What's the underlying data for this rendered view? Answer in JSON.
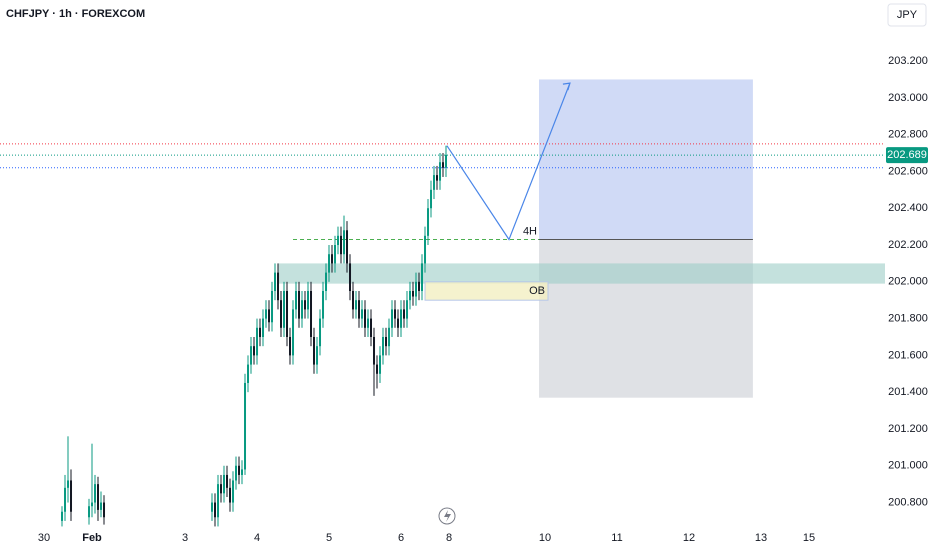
{
  "chart_data": {
    "type": "candlestick",
    "title": "CHFJPY · 1h · FOREXCOM",
    "currency": "JPY",
    "color_up": "#089981",
    "color_down": "#131722",
    "x": [
      6,
      7,
      8,
      9,
      15,
      16,
      17,
      18,
      19,
      20,
      56,
      57,
      58,
      59,
      60,
      61,
      62,
      63,
      64,
      65,
      66,
      67,
      68,
      69,
      70,
      71,
      72,
      73,
      74,
      75,
      76,
      77,
      78,
      79,
      80,
      81,
      82,
      83,
      84,
      85,
      86,
      87,
      88,
      89,
      90,
      91,
      92,
      93,
      94,
      95,
      96,
      97,
      98,
      99,
      100,
      101,
      102,
      103,
      104,
      105,
      106,
      107,
      108,
      109,
      110,
      111,
      112,
      113,
      114,
      115,
      116,
      117,
      118,
      119,
      120,
      121,
      122,
      123,
      124,
      125,
      126,
      127,
      128,
      129,
      130,
      131,
      132,
      133,
      134
    ],
    "open": [
      200.7,
      200.75,
      200.88,
      200.92,
      200.72,
      200.78,
      200.8,
      200.9,
      200.76,
      200.8,
      200.75,
      200.8,
      200.72,
      200.9,
      200.85,
      200.95,
      200.88,
      200.8,
      200.92,
      201.0,
      200.95,
      200.98,
      201.45,
      201.55,
      201.65,
      201.6,
      201.75,
      201.7,
      201.8,
      201.85,
      201.78,
      201.95,
      202.05,
      201.9,
      201.75,
      201.95,
      201.7,
      201.6,
      201.85,
      201.95,
      201.8,
      201.9,
      201.85,
      201.95,
      201.7,
      201.55,
      201.65,
      201.8,
      201.95,
      202.05,
      202.15,
      202.1,
      202.2,
      202.25,
      202.15,
      202.28,
      202.1,
      201.95,
      201.85,
      201.9,
      201.8,
      201.85,
      201.75,
      201.8,
      201.7,
      201.55,
      201.5,
      201.6,
      201.7,
      201.65,
      201.75,
      201.85,
      201.8,
      201.75,
      201.85,
      201.8,
      201.9,
      201.95,
      201.92,
      202.0,
      201.95,
      202.1,
      202.25,
      202.4,
      202.5,
      202.58,
      202.55,
      202.65,
      202.62
    ],
    "high": [
      200.78,
      200.95,
      201.16,
      200.98,
      200.82,
      201.12,
      200.95,
      200.94,
      200.86,
      200.84,
      200.85,
      200.85,
      200.95,
      200.95,
      201.0,
      201.0,
      200.93,
      200.97,
      201.05,
      201.05,
      201.03,
      201.5,
      201.6,
      201.7,
      201.7,
      201.8,
      201.8,
      201.85,
      201.9,
      201.9,
      202.0,
      202.1,
      202.1,
      201.95,
      202.0,
      202.0,
      201.75,
      201.9,
      202.0,
      202.0,
      201.95,
      201.95,
      202.0,
      202.0,
      201.75,
      201.7,
      201.85,
      202.0,
      202.1,
      202.2,
      202.2,
      202.25,
      202.3,
      202.3,
      202.36,
      202.33,
      202.15,
      202.0,
      201.95,
      201.95,
      201.9,
      201.9,
      201.85,
      201.85,
      201.75,
      201.6,
      201.65,
      201.75,
      201.75,
      201.8,
      201.9,
      201.9,
      201.85,
      201.9,
      201.9,
      201.95,
      202.0,
      202.0,
      202.05,
      202.05,
      202.15,
      202.3,
      202.45,
      202.55,
      202.63,
      202.63,
      202.7,
      202.7,
      202.74
    ],
    "low": [
      200.67,
      200.7,
      200.8,
      200.7,
      200.68,
      200.72,
      200.74,
      200.7,
      200.72,
      200.68,
      200.7,
      200.67,
      200.67,
      200.8,
      200.8,
      200.83,
      200.75,
      200.75,
      200.87,
      200.9,
      200.9,
      200.95,
      201.4,
      201.5,
      201.55,
      201.55,
      201.65,
      201.65,
      201.75,
      201.73,
      201.73,
      201.9,
      201.85,
      201.7,
      201.7,
      201.65,
      201.55,
      201.55,
      201.8,
      201.75,
      201.75,
      201.8,
      201.8,
      201.65,
      201.5,
      201.5,
      201.6,
      201.75,
      201.9,
      202.0,
      202.05,
      202.05,
      202.15,
      202.1,
      202.1,
      202.05,
      201.9,
      201.8,
      201.8,
      201.75,
      201.75,
      201.7,
      201.7,
      201.65,
      201.38,
      201.42,
      201.45,
      201.55,
      201.6,
      201.6,
      201.7,
      201.75,
      201.7,
      201.7,
      201.75,
      201.75,
      201.85,
      201.87,
      201.87,
      201.9,
      201.9,
      202.05,
      202.2,
      202.35,
      202.45,
      202.5,
      202.5,
      202.57,
      202.57
    ],
    "close": [
      200.75,
      200.88,
      200.92,
      200.75,
      200.78,
      200.8,
      200.9,
      200.76,
      200.8,
      200.72,
      200.8,
      200.72,
      200.9,
      200.85,
      200.95,
      200.88,
      200.8,
      200.92,
      201.0,
      200.95,
      200.98,
      201.45,
      201.55,
      201.65,
      201.6,
      201.75,
      201.7,
      201.8,
      201.85,
      201.78,
      201.95,
      202.05,
      201.9,
      201.75,
      201.95,
      201.7,
      201.6,
      201.85,
      201.95,
      201.8,
      201.9,
      201.85,
      201.95,
      201.7,
      201.55,
      201.65,
      201.8,
      201.95,
      202.05,
      202.15,
      202.1,
      202.2,
      202.25,
      202.15,
      202.28,
      202.1,
      201.95,
      201.85,
      201.9,
      201.8,
      201.85,
      201.75,
      201.8,
      201.7,
      201.55,
      201.5,
      201.6,
      201.7,
      201.65,
      201.75,
      201.85,
      201.8,
      201.75,
      201.85,
      201.8,
      201.9,
      201.95,
      201.92,
      202.0,
      201.95,
      202.1,
      202.25,
      202.4,
      202.5,
      202.58,
      202.55,
      202.65,
      202.62,
      202.69
    ],
    "xlim": [
      -14.67,
      280.33
    ],
    "ylim": [
      200.667,
      203.532
    ],
    "xticks": [
      {
        "value": 0,
        "label": "30"
      },
      {
        "value": 16,
        "label": "Feb"
      },
      {
        "value": 47,
        "label": "3"
      },
      {
        "value": 71,
        "label": "4"
      },
      {
        "value": 95,
        "label": "5"
      },
      {
        "value": 119,
        "label": "6"
      },
      {
        "value": 135,
        "label": "8"
      },
      {
        "value": 167,
        "label": "10"
      },
      {
        "value": 191,
        "label": "11"
      },
      {
        "value": 215,
        "label": "12"
      },
      {
        "value": 239,
        "label": "13"
      },
      {
        "value": 255,
        "label": "15"
      }
    ],
    "yticks": [
      {
        "value": 200.8,
        "label": "200.800"
      },
      {
        "value": 201.0,
        "label": "201.000"
      },
      {
        "value": 201.2,
        "label": "201.200"
      },
      {
        "value": 201.4,
        "label": "201.400"
      },
      {
        "value": 201.6,
        "label": "201.600"
      },
      {
        "value": 201.8,
        "label": "201.800"
      },
      {
        "value": 202.0,
        "label": "202.000"
      },
      {
        "value": 202.2,
        "label": "202.200"
      },
      {
        "value": 202.4,
        "label": "202.400"
      },
      {
        "value": 202.6,
        "label": "202.600"
      },
      {
        "value": 202.8,
        "label": "202.800"
      },
      {
        "value": 203.0,
        "label": "203.000"
      },
      {
        "value": 203.2,
        "label": "203.200"
      }
    ],
    "last_price": 202.689,
    "last_price_color": "#089981",
    "levels": [
      {
        "value": 202.75,
        "color": "#f23645"
      },
      {
        "value": 202.62,
        "color": "#2962ff"
      }
    ],
    "zone": {
      "top": 202.1,
      "bottom": 201.99,
      "x_start": 78,
      "color": "#9ccdc6"
    },
    "order_block": {
      "label": "OB",
      "top": 202.0,
      "bottom": 201.9,
      "x": [
        127,
        168
      ],
      "color": "#f3efc2"
    },
    "level_4h": {
      "label": "4H",
      "value": 202.23,
      "x": [
        83,
        165
      ],
      "color": "#4caf50"
    },
    "position": {
      "entry": 202.23,
      "target": 203.1,
      "stop": 201.37,
      "x": [
        165,
        236.3
      ]
    },
    "projection": {
      "x": [
        134.3,
        155,
        175.3
      ],
      "values": [
        202.74,
        202.23,
        203.08
      ],
      "color": "#4a86e8"
    }
  }
}
